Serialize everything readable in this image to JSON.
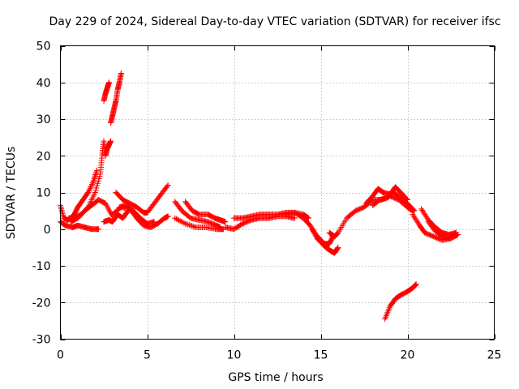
{
  "chart_data": {
    "type": "scatter",
    "title": "Day 229 of 2024, Sidereal Day-to-day VTEC variation (SDTVAR) for receiver ifsc",
    "xlabel": "GPS time / hours",
    "ylabel": "SDTVAR / TECUs",
    "xlim": [
      0,
      25
    ],
    "ylim": [
      -30,
      50
    ],
    "xticks": [
      0,
      5,
      10,
      15,
      20,
      25
    ],
    "yticks": [
      -30,
      -20,
      -10,
      0,
      10,
      20,
      30,
      40,
      50
    ],
    "grid": true,
    "marker": "plus",
    "color": "#ff0000",
    "series": [
      {
        "name": "s1",
        "x": [
          0.0,
          0.3,
          0.7,
          1.0,
          1.4,
          1.8,
          2.2
        ],
        "y": [
          2.0,
          1.0,
          0.5,
          1.0,
          0.5,
          0.0,
          0.0
        ]
      },
      {
        "name": "s2",
        "x": [
          0.0,
          0.2,
          0.4,
          0.6,
          0.8,
          1.0,
          1.3,
          1.6,
          1.9,
          2.1
        ],
        "y": [
          6.5,
          3.0,
          2.5,
          3.0,
          4.0,
          6.0,
          8.0,
          10.0,
          13.0,
          16.0
        ]
      },
      {
        "name": "s3",
        "x": [
          0.5,
          0.8,
          1.2,
          1.6,
          2.0,
          2.3,
          2.4,
          2.5,
          2.6,
          2.7,
          2.8,
          2.9
        ],
        "y": [
          3.0,
          3.0,
          4.0,
          6.0,
          10.0,
          15.0,
          20.0,
          24.0,
          20.0,
          22.0,
          23.0,
          24.0
        ]
      },
      {
        "name": "s4",
        "x": [
          0.6,
          1.0,
          1.4,
          1.8,
          2.2,
          2.6,
          3.0
        ],
        "y": [
          2.0,
          3.0,
          5.0,
          6.5,
          8.0,
          7.0,
          3.5
        ]
      },
      {
        "name": "s5",
        "x": [
          2.5,
          2.6,
          2.7,
          2.8
        ],
        "y": [
          35.0,
          37.0,
          38.5,
          40.0
        ]
      },
      {
        "name": "s6",
        "x": [
          2.9,
          3.0,
          3.1,
          3.2,
          3.3,
          3.4,
          3.5
        ],
        "y": [
          29.0,
          31.0,
          33.0,
          35.0,
          38.0,
          40.0,
          42.5
        ]
      },
      {
        "name": "s7",
        "x": [
          2.5,
          2.8,
          3.0,
          3.3,
          3.6,
          3.9
        ],
        "y": [
          2.0,
          2.5,
          2.0,
          4.0,
          3.0,
          5.0
        ]
      },
      {
        "name": "s8",
        "x": [
          3.2,
          3.6,
          4.0,
          4.4,
          4.8,
          5.0,
          5.4,
          5.8,
          6.2
        ],
        "y": [
          10.0,
          8.0,
          7.0,
          6.0,
          4.5,
          4.5,
          7.0,
          9.5,
          12.0
        ]
      },
      {
        "name": "s9",
        "x": [
          3.0,
          3.5,
          4.0,
          4.4,
          4.8,
          5.2,
          5.6,
          6.0,
          6.2
        ],
        "y": [
          4.0,
          6.0,
          5.5,
          3.0,
          1.0,
          0.5,
          1.5,
          3.0,
          3.5
        ]
      },
      {
        "name": "s10",
        "x": [
          3.4,
          3.8,
          4.2,
          4.6,
          5.0,
          5.4
        ],
        "y": [
          6.0,
          6.5,
          5.0,
          3.0,
          1.5,
          2.0
        ]
      },
      {
        "name": "s11",
        "x": [
          6.6,
          7.0,
          7.5,
          8.0,
          8.5,
          9.0,
          9.2
        ],
        "y": [
          7.5,
          5.0,
          3.0,
          2.5,
          2.0,
          1.0,
          0.5
        ]
      },
      {
        "name": "s12",
        "x": [
          7.2,
          7.6,
          8.0,
          8.5,
          8.9,
          9.2,
          9.5
        ],
        "y": [
          7.5,
          5.0,
          4.0,
          4.0,
          3.0,
          2.5,
          2.0
        ]
      },
      {
        "name": "s13",
        "x": [
          6.6,
          7.2,
          7.8,
          8.4,
          9.0,
          9.4
        ],
        "y": [
          3.0,
          1.5,
          0.5,
          0.5,
          0.0,
          0.0
        ]
      },
      {
        "name": "s14",
        "x": [
          9.5,
          10.0,
          10.5,
          11.0,
          11.5,
          12.0,
          12.5,
          13.0,
          13.5
        ],
        "y": [
          0.5,
          0.0,
          1.5,
          2.5,
          3.0,
          3.0,
          3.5,
          3.5,
          3.0
        ]
      },
      {
        "name": "s15",
        "x": [
          10.0,
          10.5,
          11.0,
          11.5,
          12.0,
          12.5,
          13.0,
          13.5,
          14.0,
          14.3
        ],
        "y": [
          3.0,
          3.0,
          3.5,
          4.0,
          4.0,
          4.0,
          4.5,
          4.5,
          4.0,
          3.0
        ]
      },
      {
        "name": "s16",
        "x": [
          13.0,
          13.5,
          14.0,
          14.4,
          14.8,
          15.0,
          15.2,
          15.5,
          15.7
        ],
        "y": [
          4.0,
          4.5,
          3.0,
          1.0,
          -2.0,
          -3.0,
          -4.0,
          -4.0,
          -2.0
        ]
      },
      {
        "name": "s17",
        "x": [
          14.5,
          14.8,
          15.0,
          15.3,
          15.6,
          15.8,
          16.0
        ],
        "y": [
          0.0,
          -2.5,
          -3.5,
          -5.0,
          -6.0,
          -6.5,
          -5.0
        ]
      },
      {
        "name": "s18",
        "x": [
          15.5,
          15.8,
          16.0,
          16.5,
          17.0,
          17.5,
          18.0,
          18.5,
          19.0,
          19.5,
          20.0,
          20.3
        ],
        "y": [
          -1.0,
          -2.0,
          -1.0,
          3.0,
          5.0,
          6.0,
          8.0,
          8.0,
          9.0,
          8.0,
          6.0,
          5.0
        ]
      },
      {
        "name": "s19",
        "x": [
          17.6,
          18.0,
          18.3,
          18.6,
          19.0,
          19.3,
          19.6,
          20.0
        ],
        "y": [
          7.0,
          9.0,
          11.0,
          10.0,
          9.5,
          11.5,
          10.0,
          8.0
        ]
      },
      {
        "name": "s20",
        "x": [
          18.0,
          18.4,
          18.8,
          19.2,
          19.6,
          20.0,
          20.4
        ],
        "y": [
          6.5,
          8.0,
          8.5,
          10.0,
          8.5,
          7.0,
          5.0
        ]
      },
      {
        "name": "s21",
        "x": [
          18.7,
          19.0,
          19.3,
          19.6,
          20.0,
          20.3,
          20.5
        ],
        "y": [
          -24.5,
          -21.0,
          -19.0,
          -18.0,
          -17.0,
          -16.0,
          -15.0
        ]
      },
      {
        "name": "s22",
        "x": [
          20.3,
          20.7,
          21.0,
          21.5,
          22.0,
          22.5,
          22.9
        ],
        "y": [
          4.0,
          1.0,
          -1.0,
          -2.0,
          -3.0,
          -2.5,
          -1.5
        ]
      },
      {
        "name": "s23",
        "x": [
          20.8,
          21.2,
          21.6,
          22.0,
          22.4,
          22.8
        ],
        "y": [
          5.5,
          2.5,
          0.5,
          -1.0,
          -1.5,
          -1.0
        ]
      },
      {
        "name": "s24",
        "x": [
          21.2,
          21.6,
          22.0,
          22.4,
          22.8
        ],
        "y": [
          2.0,
          -0.5,
          -2.0,
          -2.5,
          -1.0
        ]
      }
    ]
  }
}
